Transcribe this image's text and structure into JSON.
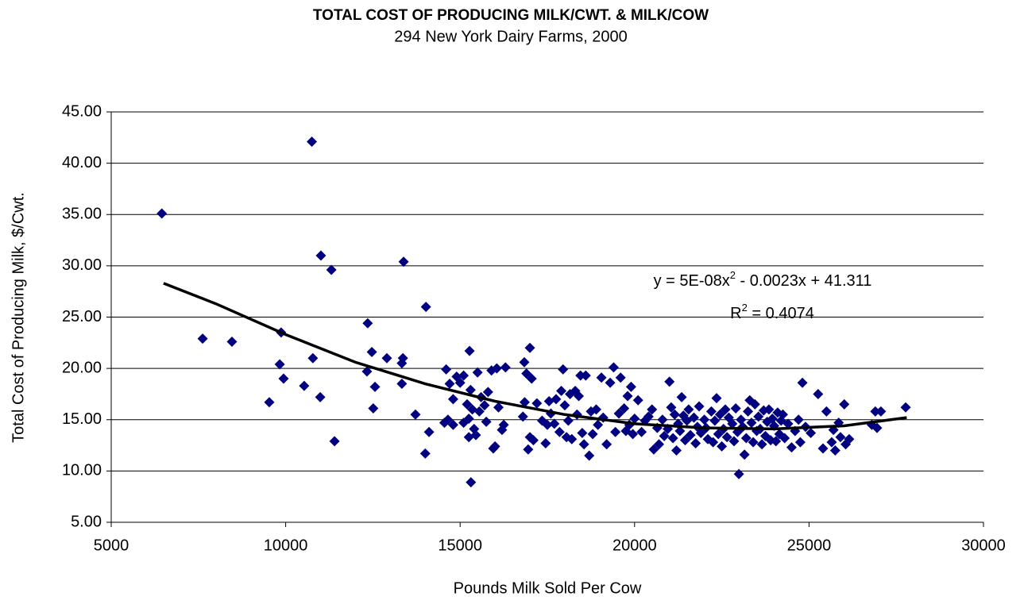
{
  "chart_data": {
    "type": "scatter",
    "title": "TOTAL COST OF PRODUCING MILK/CWT. & MILK/COW",
    "subtitle": "294 New York Dairy Farms, 2000",
    "x_label": "Pounds Milk Sold Per Cow",
    "y_label": "Total Cost of Producing Milk, $/Cwt.",
    "color": "#000080",
    "xlim": [
      5000,
      30000
    ],
    "xticks": [
      5000,
      10000,
      15000,
      20000,
      25000,
      30000
    ],
    "ylim": [
      5,
      45
    ],
    "yticks": [
      {
        "value": 5,
        "label": "5.00"
      },
      {
        "value": 10,
        "label": "10.00"
      },
      {
        "value": 15,
        "label": "15.00"
      },
      {
        "value": 20,
        "label": "20.00"
      },
      {
        "value": 25,
        "label": "25.00"
      },
      {
        "value": 30,
        "label": "30.00"
      },
      {
        "value": 35,
        "label": "35.00"
      },
      {
        "value": 40,
        "label": "40.00"
      },
      {
        "value": 45,
        "label": "45.00"
      }
    ],
    "grid": true,
    "x": [
      6450,
      10750,
      7620,
      8460,
      9530,
      9830,
      9870,
      9940,
      10530,
      10780,
      10990,
      11010,
      11310,
      11400,
      12350,
      12330,
      12470,
      12560,
      12510,
      12900,
      13330,
      13330,
      13360,
      13380,
      14020,
      14000,
      14110,
      13720,
      15310,
      15250,
      15270,
      17000,
      16840,
      22990,
      24810,
      25260,
      26010,
      27060,
      27770,
      14600,
      14700,
      14800,
      14900,
      14650,
      14550,
      15000,
      15100,
      15200,
      15300,
      15350,
      15400,
      15450,
      15500,
      15550,
      15600,
      15700,
      15750,
      15800,
      15900,
      15950,
      16000,
      16050,
      16100,
      16250,
      16300,
      16200,
      15100,
      14800,
      15250,
      16800,
      16850,
      16900,
      16950,
      17000,
      17050,
      17100,
      17200,
      17350,
      17450,
      17500,
      17550,
      17600,
      17700,
      17750,
      17850,
      17900,
      17950,
      18000,
      18050,
      18100,
      18150,
      18200,
      18300,
      18350,
      18400,
      18450,
      18500,
      18550,
      18600,
      18700,
      18750,
      18800,
      18900,
      18950,
      19050,
      19100,
      19200,
      19300,
      19400,
      19450,
      19550,
      19600,
      19700,
      19750,
      19800,
      19850,
      19900,
      19950,
      20000,
      20100,
      20200,
      20300,
      20400,
      20500,
      20550,
      20650,
      20700,
      20800,
      20850,
      20950,
      21000,
      21050,
      21100,
      21150,
      21200,
      21250,
      21300,
      21350,
      21400,
      21450,
      21500,
      21550,
      21600,
      21700,
      21750,
      21800,
      21850,
      21900,
      22000,
      22050,
      22100,
      22200,
      22250,
      22300,
      22350,
      22400,
      22450,
      22500,
      22550,
      22600,
      22650,
      22700,
      22800,
      22850,
      22900,
      22950,
      23050,
      23100,
      23150,
      23200,
      23250,
      23300,
      23350,
      23400,
      23450,
      23500,
      23550,
      23600,
      23650,
      23700,
      23750,
      23800,
      23850,
      23900,
      23950,
      24000,
      24050,
      24100,
      24150,
      24200,
      24250,
      24300,
      24400,
      24500,
      24600,
      24700,
      24750,
      24900,
      25050,
      25400,
      25500,
      25650,
      25700,
      25750,
      25850,
      25900,
      26050,
      26150,
      26800,
      26900,
      26950
    ],
    "values": [
      35.1,
      42.1,
      22.9,
      22.6,
      16.7,
      20.4,
      23.5,
      19.0,
      18.3,
      21.0,
      17.2,
      31.0,
      29.6,
      12.9,
      24.4,
      19.7,
      21.6,
      18.2,
      16.1,
      21.0,
      20.5,
      18.5,
      21.0,
      30.4,
      26.0,
      11.7,
      13.8,
      15.5,
      8.9,
      15.1,
      21.7,
      22.0,
      20.6,
      9.7,
      18.6,
      17.5,
      16.5,
      15.8,
      16.2,
      19.9,
      18.5,
      17.0,
      19.2,
      15.0,
      14.7,
      18.6,
      19.3,
      16.5,
      17.9,
      16.0,
      14.1,
      13.5,
      19.6,
      15.8,
      17.2,
      16.4,
      14.8,
      17.7,
      19.8,
      12.2,
      12.4,
      20.0,
      16.2,
      14.5,
      20.1,
      14.0,
      14.7,
      14.5,
      13.3,
      15.3,
      16.7,
      19.5,
      12.1,
      13.3,
      19.0,
      13.0,
      16.6,
      14.9,
      12.7,
      14.5,
      16.8,
      15.6,
      14.6,
      17.0,
      13.8,
      17.8,
      19.9,
      16.4,
      13.3,
      14.9,
      17.5,
      13.1,
      17.8,
      15.5,
      17.3,
      19.3,
      13.7,
      12.6,
      19.3,
      11.5,
      15.8,
      13.6,
      16.0,
      14.5,
      19.1,
      15.2,
      12.6,
      18.6,
      20.1,
      13.8,
      15.6,
      19.1,
      16.1,
      13.9,
      17.3,
      14.5,
      18.2,
      13.6,
      15.1,
      16.9,
      13.8,
      14.9,
      15.3,
      16.0,
      12.1,
      14.2,
      12.6,
      15.0,
      13.4,
      14.1,
      18.7,
      16.2,
      13.2,
      15.5,
      12.0,
      14.6,
      13.9,
      17.2,
      15.4,
      13.0,
      14.9,
      16.0,
      13.5,
      15.2,
      12.7,
      14.3,
      16.3,
      13.7,
      15.0,
      14.2,
      13.1,
      15.8,
      12.8,
      14.9,
      17.1,
      13.6,
      15.5,
      12.4,
      14.1,
      16.0,
      13.3,
      15.2,
      14.6,
      12.9,
      16.1,
      13.8,
      15.0,
      14.3,
      11.6,
      13.2,
      15.8,
      16.9,
      14.7,
      12.8,
      16.5,
      13.9,
      15.3,
      14.1,
      12.6,
      15.9,
      13.4,
      14.8,
      16.0,
      13.0,
      15.1,
      14.4,
      12.9,
      15.7,
      13.6,
      14.9,
      15.5,
      13.2,
      14.6,
      12.3,
      13.9,
      15.0,
      12.8,
      14.3,
      13.7,
      12.2,
      15.8,
      12.8,
      14.0,
      12.0,
      14.7,
      13.3,
      12.6,
      13.1,
      14.5,
      15.8,
      14.2
    ],
    "trendline": {
      "color": "#000000",
      "x": [
        6500,
        8000,
        10000,
        12000,
        14000,
        16000,
        18000,
        20000,
        22000,
        24000,
        26000,
        27800
      ],
      "values": [
        28.3,
        26.3,
        23.3,
        20.6,
        18.5,
        16.8,
        15.5,
        14.6,
        14.2,
        14.1,
        14.4,
        15.2
      ],
      "equation": [
        "y = 5E-08x",
        "2",
        " - 0.0023x + 41.311"
      ],
      "r2": [
        "R",
        "2",
        " = 0.4074"
      ]
    }
  }
}
